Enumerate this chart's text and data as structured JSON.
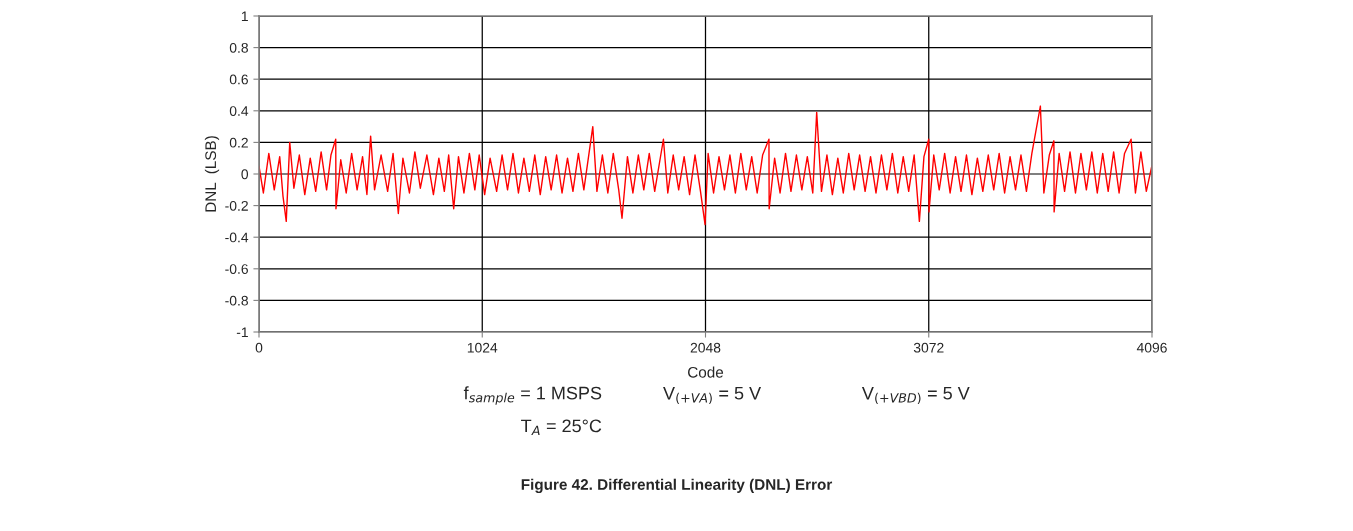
{
  "chart_data": {
    "type": "line",
    "title": "Figure 42. Differential Linearity (DNL) Error",
    "xlabel": "Code",
    "ylabel": "DNL  (LSB)",
    "annotations": [
      "f$_{sample}$ = 1 MSPS",
      "V$_{(+VA)}$ = 5 V",
      "V$_{(+VBD)}$ = 5 V",
      "T$_{A}$ = 25°C"
    ],
    "xlim": [
      0,
      4096
    ],
    "xticks": [
      0,
      1024,
      2048,
      3072,
      4096
    ],
    "ylim": [
      -1,
      1
    ],
    "yticks": [
      -1,
      -0.8,
      -0.6,
      -0.4,
      -0.2,
      0,
      0.2,
      0.4,
      0.6,
      0.8,
      1
    ],
    "grid": true,
    "marker": "none",
    "line_style": "solid",
    "series": [
      {
        "color": "#ff0000",
        "x": [
          0,
          20,
          45,
          70,
          95,
          110,
          125,
          141,
          160,
          185,
          210,
          235,
          260,
          285,
          310,
          330,
          352,
          353,
          375,
          400,
          425,
          450,
          475,
          495,
          512,
          530,
          560,
          590,
          615,
          639,
          660,
          690,
          715,
          740,
          770,
          800,
          825,
          850,
          870,
          893,
          915,
          940,
          965,
          990,
          1010,
          1035,
          1060,
          1090,
          1115,
          1140,
          1165,
          1190,
          1215,
          1240,
          1265,
          1290,
          1315,
          1340,
          1365,
          1390,
          1415,
          1440,
          1465,
          1490,
          1531,
          1550,
          1575,
          1600,
          1625,
          1650,
          1665,
          1690,
          1715,
          1740,
          1765,
          1790,
          1815,
          1855,
          1875,
          1900,
          1925,
          1950,
          1975,
          2000,
          2025,
          2046,
          2060,
          2085,
          2110,
          2135,
          2160,
          2185,
          2210,
          2235,
          2260,
          2285,
          2310,
          2339,
          2340,
          2365,
          2390,
          2415,
          2440,
          2465,
          2490,
          2515,
          2540,
          2558,
          2580,
          2605,
          2630,
          2655,
          2680,
          2705,
          2730,
          2755,
          2780,
          2805,
          2830,
          2855,
          2880,
          2905,
          2930,
          2955,
          2980,
          3005,
          3029,
          3050,
          3072,
          3073,
          3095,
          3120,
          3145,
          3170,
          3195,
          3220,
          3245,
          3270,
          3295,
          3320,
          3345,
          3370,
          3395,
          3420,
          3445,
          3470,
          3495,
          3520,
          3545,
          3584,
          3600,
          3625,
          3646,
          3647,
          3670,
          3695,
          3720,
          3745,
          3770,
          3795,
          3820,
          3845,
          3870,
          3895,
          3920,
          3945,
          3970,
          4000,
          4020,
          4045,
          4070,
          4095
        ],
        "values": [
          0.05,
          -0.12,
          0.13,
          -0.1,
          0.11,
          -0.14,
          -0.3,
          0.2,
          -0.09,
          0.12,
          -0.13,
          0.1,
          -0.11,
          0.14,
          -0.1,
          0.12,
          0.22,
          -0.22,
          0.09,
          -0.12,
          0.13,
          -0.1,
          0.11,
          -0.13,
          0.24,
          -0.1,
          0.12,
          -0.11,
          0.13,
          -0.25,
          0.1,
          -0.12,
          0.14,
          -0.09,
          0.12,
          -0.13,
          0.1,
          -0.11,
          0.12,
          -0.22,
          0.11,
          -0.12,
          0.13,
          -0.1,
          0.12,
          -0.13,
          0.1,
          -0.11,
          0.12,
          -0.1,
          0.13,
          -0.12,
          0.1,
          -0.11,
          0.12,
          -0.13,
          0.11,
          -0.1,
          0.12,
          -0.12,
          0.1,
          -0.11,
          0.13,
          -0.1,
          0.3,
          -0.11,
          0.12,
          -0.12,
          0.13,
          -0.1,
          -0.28,
          0.11,
          -0.12,
          0.12,
          -0.1,
          0.13,
          -0.11,
          0.22,
          -0.12,
          0.12,
          -0.1,
          0.11,
          -0.13,
          0.12,
          -0.11,
          -0.32,
          0.13,
          -0.12,
          0.11,
          -0.1,
          0.12,
          -0.12,
          0.13,
          -0.1,
          0.11,
          -0.12,
          0.12,
          0.22,
          -0.22,
          0.1,
          -0.12,
          0.13,
          -0.11,
          0.12,
          -0.1,
          0.11,
          -0.12,
          0.39,
          -0.11,
          0.12,
          -0.13,
          0.1,
          -0.12,
          0.13,
          -0.1,
          0.12,
          -0.11,
          0.11,
          -0.12,
          0.12,
          -0.1,
          0.13,
          -0.12,
          0.11,
          -0.11,
          0.12,
          -0.3,
          0.11,
          0.22,
          -0.24,
          0.12,
          -0.1,
          0.13,
          -0.12,
          0.11,
          -0.11,
          0.12,
          -0.13,
          0.1,
          -0.11,
          0.12,
          -0.1,
          0.13,
          -0.12,
          0.11,
          -0.1,
          0.12,
          -0.11,
          0.13,
          0.43,
          -0.12,
          0.12,
          0.21,
          -0.24,
          0.13,
          -0.11,
          0.14,
          -0.12,
          0.13,
          -0.1,
          0.14,
          -0.12,
          0.13,
          -0.11,
          0.14,
          -0.12,
          0.13,
          0.22,
          -0.12,
          0.14,
          -0.11,
          0.05
        ]
      }
    ]
  }
}
